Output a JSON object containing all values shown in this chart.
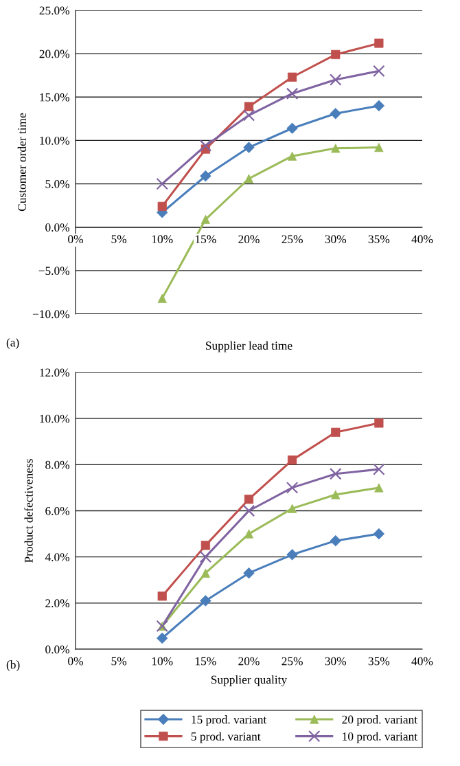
{
  "chart_data": [
    {
      "type": "line",
      "xlabel": "Supplier lead time",
      "ylabel": "Customer order time",
      "annotations": [
        "(a)"
      ],
      "x": [
        10,
        15,
        20,
        25,
        30,
        35
      ],
      "xlim": [
        0,
        40
      ],
      "xticks": [
        {
          "value": 0,
          "label": "0%"
        },
        {
          "value": 5,
          "label": "5%"
        },
        {
          "value": 10,
          "label": "10%"
        },
        {
          "value": 15,
          "label": "15%"
        },
        {
          "value": 20,
          "label": "20%"
        },
        {
          "value": 25,
          "label": "25%"
        },
        {
          "value": 30,
          "label": "30%"
        },
        {
          "value": 35,
          "label": "35%"
        },
        {
          "value": 40,
          "label": "40%"
        }
      ],
      "ylim": [
        -10,
        25
      ],
      "yticks": [
        {
          "value": -10,
          "label": "−10.0%"
        },
        {
          "value": -5,
          "label": "−5.0%"
        },
        {
          "value": 0,
          "label": "0.0%"
        },
        {
          "value": 5,
          "label": "5.0%"
        },
        {
          "value": 10,
          "label": "10.0%"
        },
        {
          "value": 15,
          "label": "15.0%"
        },
        {
          "value": 20,
          "label": "20.0%"
        },
        {
          "value": 25,
          "label": "25.0%"
        }
      ],
      "grid": "y",
      "series": [
        {
          "color": "#4a7ebb",
          "marker": "diamond",
          "values": [
            1.7,
            5.9,
            9.2,
            11.4,
            13.1,
            14.0
          ]
        },
        {
          "color": "#c0504d",
          "marker": "square",
          "values": [
            2.4,
            9.0,
            13.9,
            17.3,
            19.9,
            21.2
          ]
        },
        {
          "color": "#9bbb59",
          "marker": "triangle",
          "values": [
            -8.2,
            0.9,
            5.6,
            8.2,
            9.1,
            9.2
          ]
        },
        {
          "color": "#8064a2",
          "marker": "cross",
          "values": [
            5.0,
            9.4,
            12.9,
            15.4,
            17.0,
            18.0
          ]
        }
      ]
    },
    {
      "type": "line",
      "xlabel": "Supplier quality",
      "ylabel": "Product defectiveness",
      "annotations": [
        "(b)"
      ],
      "x": [
        10,
        15,
        20,
        25,
        30,
        35
      ],
      "xlim": [
        0,
        40
      ],
      "xticks": [
        {
          "value": 0,
          "label": "0%"
        },
        {
          "value": 5,
          "label": "5%"
        },
        {
          "value": 10,
          "label": "10%"
        },
        {
          "value": 15,
          "label": "15%"
        },
        {
          "value": 20,
          "label": "20%"
        },
        {
          "value": 25,
          "label": "25%"
        },
        {
          "value": 30,
          "label": "30%"
        },
        {
          "value": 35,
          "label": "35%"
        },
        {
          "value": 40,
          "label": "40%"
        }
      ],
      "ylim": [
        0,
        12
      ],
      "yticks": [
        {
          "value": 0,
          "label": "0.0%"
        },
        {
          "value": 2,
          "label": "2.0%"
        },
        {
          "value": 4,
          "label": "4.0%"
        },
        {
          "value": 6,
          "label": "6.0%"
        },
        {
          "value": 8,
          "label": "8.0%"
        },
        {
          "value": 10,
          "label": "10.0%"
        },
        {
          "value": 12,
          "label": "12.0%"
        }
      ],
      "grid": "y",
      "legend": "bottom",
      "series": [
        {
          "name": "15 prod. variant",
          "color": "#4a7ebb",
          "marker": "diamond",
          "values": [
            0.48,
            2.1,
            3.3,
            4.1,
            4.7,
            5.0
          ]
        },
        {
          "name": "5 prod. variant",
          "color": "#c0504d",
          "marker": "square",
          "values": [
            2.3,
            4.5,
            6.5,
            8.2,
            9.4,
            9.8
          ]
        },
        {
          "name": "20 prod. variant",
          "color": "#9bbb59",
          "marker": "triangle",
          "values": [
            1.0,
            3.3,
            5.0,
            6.1,
            6.7,
            7.0
          ]
        },
        {
          "name": "10 prod. variant",
          "color": "#8064a2",
          "marker": "cross",
          "values": [
            1.0,
            4.0,
            6.0,
            7.0,
            7.6,
            7.8
          ]
        }
      ]
    }
  ]
}
